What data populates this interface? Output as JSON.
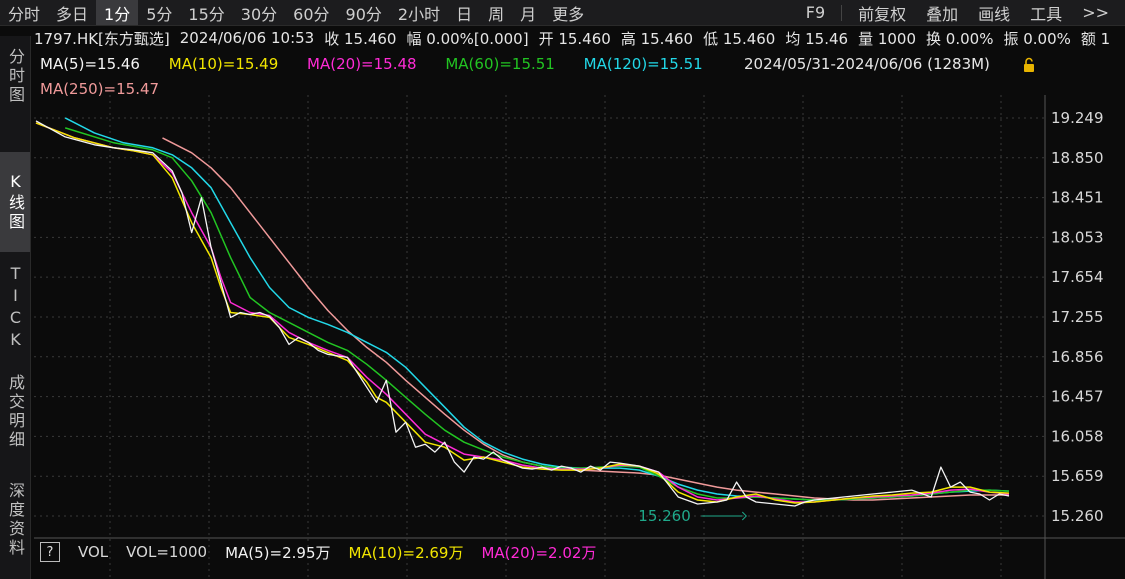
{
  "toolbar": {
    "left_items": [
      "分时",
      "多日",
      "1分",
      "5分",
      "15分",
      "30分",
      "60分",
      "90分",
      "2小时",
      "日",
      "周",
      "月",
      "更多"
    ],
    "active_index": 2,
    "right_items": [
      "F9",
      "前复权",
      "叠加",
      "画线",
      "工具",
      ">>"
    ]
  },
  "info": {
    "symbol": "1797.HK[东方甄选]",
    "datetime": "2024/06/06 10:53",
    "close": "收 15.460",
    "change": "幅 0.00%[0.000]",
    "open": "开 15.460",
    "high": "高 15.460",
    "low": "低 15.460",
    "avg": "均 15.46",
    "volume": "量 1000",
    "turnover": "换 0.00%",
    "amplitude": "振 0.00%",
    "amount": "额 1"
  },
  "left_tabs": [
    {
      "label": "分时图",
      "active": false
    },
    {
      "label": "K线图",
      "active": true
    },
    {
      "label": "TICK",
      "active": false
    },
    {
      "label": "成交明细",
      "active": false
    },
    {
      "label": "深度资料",
      "active": false
    }
  ],
  "ma_legend": {
    "ma5": "MA(5)=15.46",
    "ma10": "MA(10)=15.49",
    "ma20": "MA(20)=15.48",
    "ma60": "MA(60)=15.51",
    "ma120": "MA(120)=15.51",
    "ma250": "MA(250)=15.47",
    "range": "2024/05/31-2024/06/06 (1283M)"
  },
  "colors": {
    "ma5": "#f5f5f5",
    "ma10": "#f2e600",
    "ma20": "#ff2bd6",
    "ma60": "#22c422",
    "ma120": "#22d8e8",
    "ma250": "#f09a9a",
    "grid": "#3a3a3a",
    "annotation": "#1fa88a",
    "lock": "#e8b400"
  },
  "volume_legend": {
    "help": "?",
    "vol_label": "VOL",
    "vol": "VOL=1000",
    "ma5": "MA(5)=2.95万",
    "ma10": "MA(10)=2.69万",
    "ma20": "MA(20)=2.02万"
  },
  "chart_data": {
    "type": "line",
    "x_range": [
      0,
      100
    ],
    "ylim": [
      15.06,
      19.45
    ],
    "y_ticks": [
      "19.249",
      "18.850",
      "18.451",
      "18.053",
      "17.654",
      "17.255",
      "16.856",
      "16.457",
      "16.058",
      "15.659",
      "15.260"
    ],
    "annotations": [
      {
        "label": "15.260",
        "x": 73,
        "y": 15.26
      }
    ],
    "series": [
      {
        "key": "ma5",
        "x": [
          0,
          3,
          6,
          8,
          10,
          12,
          14,
          15,
          16,
          17,
          18,
          19,
          20,
          21,
          22,
          23,
          24,
          25,
          26,
          27,
          28,
          29,
          30,
          32,
          34,
          35,
          36,
          37,
          38,
          39,
          40,
          41,
          42,
          43,
          44,
          45,
          46,
          47,
          48,
          49,
          50,
          51,
          52,
          53,
          54,
          55,
          56,
          57,
          58,
          59,
          60,
          62,
          64,
          66,
          68,
          70,
          71,
          72,
          73,
          74,
          76,
          78,
          79,
          80,
          82,
          84,
          86,
          88,
          90,
          92,
          93,
          94,
          95,
          96,
          97,
          98,
          99,
          100
        ],
        "y": [
          19.22,
          19.06,
          18.98,
          18.95,
          18.93,
          18.9,
          18.72,
          18.5,
          18.1,
          18.45,
          17.95,
          17.6,
          17.25,
          17.3,
          17.28,
          17.3,
          17.26,
          17.15,
          16.98,
          17.05,
          17.0,
          16.92,
          16.88,
          16.85,
          16.55,
          16.4,
          16.62,
          16.1,
          16.2,
          15.95,
          15.98,
          15.9,
          16.0,
          15.8,
          15.7,
          15.85,
          15.83,
          15.9,
          15.82,
          15.78,
          15.74,
          15.73,
          15.75,
          15.72,
          15.76,
          15.74,
          15.7,
          15.76,
          15.72,
          15.8,
          15.79,
          15.76,
          15.7,
          15.45,
          15.38,
          15.4,
          15.42,
          15.6,
          15.45,
          15.4,
          15.38,
          15.36,
          15.4,
          15.42,
          15.44,
          15.46,
          15.48,
          15.5,
          15.52,
          15.45,
          15.75,
          15.55,
          15.6,
          15.5,
          15.48,
          15.42,
          15.48,
          15.46
        ]
      },
      {
        "key": "ma10",
        "x": [
          0,
          4,
          8,
          10,
          12,
          14,
          16,
          18,
          19,
          20,
          22,
          24,
          26,
          28,
          30,
          32,
          34,
          35,
          36,
          38,
          40,
          42,
          44,
          46,
          48,
          50,
          52,
          54,
          56,
          58,
          60,
          62,
          64,
          66,
          68,
          70,
          72,
          74,
          76,
          78,
          80,
          82,
          84,
          86,
          88,
          90,
          92,
          94,
          96,
          98,
          100
        ],
        "y": [
          19.2,
          19.05,
          18.95,
          18.92,
          18.88,
          18.65,
          18.2,
          17.85,
          17.55,
          17.3,
          17.28,
          17.25,
          17.05,
          16.98,
          16.9,
          16.82,
          16.6,
          16.45,
          16.4,
          16.2,
          16.0,
          15.95,
          15.82,
          15.85,
          15.8,
          15.75,
          15.73,
          15.72,
          15.72,
          15.74,
          15.78,
          15.76,
          15.68,
          15.5,
          15.42,
          15.4,
          15.45,
          15.48,
          15.42,
          15.39,
          15.4,
          15.42,
          15.44,
          15.46,
          15.47,
          15.49,
          15.5,
          15.55,
          15.55,
          15.5,
          15.49
        ]
      },
      {
        "key": "ma20",
        "x": [
          0,
          4,
          8,
          10,
          12,
          14,
          16,
          18,
          19,
          20,
          22,
          24,
          26,
          28,
          30,
          32,
          34,
          36,
          38,
          40,
          42,
          44,
          46,
          48,
          50,
          52,
          54,
          56,
          58,
          60,
          62,
          64,
          66,
          68,
          70,
          72,
          74,
          76,
          78,
          80,
          82,
          84,
          86,
          88,
          90,
          92,
          94,
          96,
          98,
          100
        ],
        "y": [
          19.2,
          19.05,
          18.95,
          18.92,
          18.88,
          18.7,
          18.3,
          17.95,
          17.65,
          17.4,
          17.3,
          17.27,
          17.1,
          17.0,
          16.92,
          16.85,
          16.65,
          16.48,
          16.28,
          16.08,
          15.98,
          15.88,
          15.85,
          15.82,
          15.77,
          15.74,
          15.73,
          15.73,
          15.74,
          15.77,
          15.76,
          15.7,
          15.55,
          15.45,
          15.42,
          15.44,
          15.46,
          15.43,
          15.4,
          15.4,
          15.42,
          15.44,
          15.45,
          15.46,
          15.47,
          15.49,
          15.52,
          15.53,
          15.5,
          15.48
        ]
      },
      {
        "key": "ma60",
        "x": [
          3,
          8,
          12,
          14,
          16,
          18,
          20,
          22,
          24,
          26,
          28,
          30,
          32,
          34,
          36,
          38,
          40,
          42,
          44,
          46,
          48,
          50,
          52,
          54,
          56,
          58,
          60,
          62,
          64,
          66,
          68,
          70,
          72,
          74,
          76,
          78,
          80,
          82,
          84,
          86,
          88,
          90,
          92,
          94,
          96,
          98,
          100
        ],
        "y": [
          19.15,
          19.0,
          18.93,
          18.85,
          18.62,
          18.3,
          17.85,
          17.45,
          17.3,
          17.2,
          17.1,
          17.0,
          16.92,
          16.78,
          16.62,
          16.45,
          16.28,
          16.12,
          16.0,
          15.92,
          15.85,
          15.8,
          15.76,
          15.74,
          15.74,
          15.75,
          15.76,
          15.75,
          15.66,
          15.55,
          15.48,
          15.44,
          15.44,
          15.45,
          15.44,
          15.43,
          15.42,
          15.42,
          15.43,
          15.44,
          15.45,
          15.46,
          15.48,
          15.5,
          15.52,
          15.52,
          15.51
        ]
      },
      {
        "key": "ma120",
        "x": [
          3,
          6,
          9,
          12,
          14,
          16,
          18,
          20,
          22,
          24,
          26,
          28,
          30,
          32,
          34,
          36,
          38,
          40,
          42,
          44,
          46,
          48,
          50,
          52,
          54,
          56,
          58,
          60,
          62,
          64,
          66,
          68,
          70,
          72,
          74,
          76,
          78,
          80,
          82,
          84,
          86,
          88,
          90,
          92,
          94,
          96,
          98,
          100
        ],
        "y": [
          19.25,
          19.1,
          19.0,
          18.95,
          18.88,
          18.75,
          18.55,
          18.2,
          17.85,
          17.55,
          17.35,
          17.25,
          17.18,
          17.1,
          17.0,
          16.9,
          16.75,
          16.55,
          16.35,
          16.15,
          16.0,
          15.9,
          15.83,
          15.78,
          15.75,
          15.74,
          15.74,
          15.74,
          15.72,
          15.66,
          15.58,
          15.52,
          15.48,
          15.46,
          15.45,
          15.44,
          15.43,
          15.42,
          15.42,
          15.43,
          15.44,
          15.45,
          15.46,
          15.48,
          15.5,
          15.51,
          15.52,
          15.51
        ]
      },
      {
        "key": "ma250",
        "x": [
          13,
          16,
          18,
          20,
          22,
          24,
          26,
          28,
          30,
          32,
          34,
          36,
          38,
          40,
          42,
          44,
          46,
          48,
          50,
          52,
          54,
          56,
          58,
          60,
          62,
          64,
          66,
          68,
          70,
          72,
          74,
          76,
          78,
          80,
          82,
          84,
          86,
          88,
          90,
          92,
          94,
          96,
          98,
          100
        ],
        "y": [
          19.05,
          18.9,
          18.75,
          18.55,
          18.3,
          18.05,
          17.8,
          17.55,
          17.32,
          17.12,
          16.95,
          16.8,
          16.62,
          16.45,
          16.28,
          16.12,
          15.98,
          15.87,
          15.8,
          15.76,
          15.73,
          15.72,
          15.71,
          15.7,
          15.69,
          15.67,
          15.63,
          15.59,
          15.55,
          15.52,
          15.5,
          15.48,
          15.46,
          15.44,
          15.43,
          15.42,
          15.42,
          15.43,
          15.44,
          15.45,
          15.46,
          15.47,
          15.47,
          15.47
        ]
      }
    ]
  }
}
